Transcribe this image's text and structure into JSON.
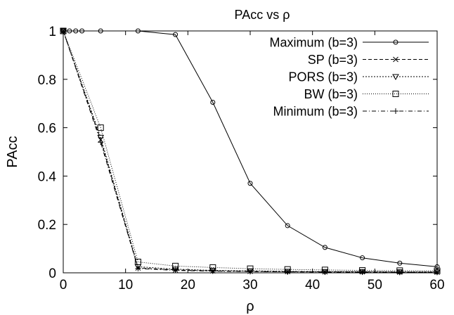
{
  "chart_data": {
    "type": "line",
    "title": "PAcc vs ρ",
    "xlabel": "ρ",
    "ylabel": "PAcc",
    "xlim": [
      0,
      60
    ],
    "ylim": [
      0,
      1
    ],
    "xticks": [
      0,
      10,
      20,
      30,
      40,
      50,
      60
    ],
    "yticks": [
      0,
      0.2,
      0.4,
      0.6,
      0.8,
      1
    ],
    "ytick_labels": [
      "0",
      "0.2",
      "0.4",
      "0.6",
      "0.8",
      "1"
    ],
    "grid": false,
    "legend_position": "top-right",
    "series": [
      {
        "name": "Maximum (b=3)",
        "line": "solid",
        "marker": "circle",
        "x": [
          0,
          1,
          2,
          3,
          6,
          12,
          18,
          24,
          30,
          36,
          42,
          48,
          54,
          60
        ],
        "y": [
          1,
          1,
          1,
          1,
          1,
          1,
          0.985,
          0.705,
          0.37,
          0.195,
          0.105,
          0.062,
          0.04,
          0.025
        ]
      },
      {
        "name": "SP (b=3)",
        "line": "dashed",
        "marker": "x",
        "x": [
          0,
          6,
          12,
          18,
          24,
          30,
          36,
          42,
          48,
          54,
          60
        ],
        "y": [
          1,
          0.55,
          0.02,
          0.012,
          0.008,
          0.006,
          0.005,
          0.004,
          0.004,
          0.003,
          0.003
        ]
      },
      {
        "name": "PORS (b=3)",
        "line": "dotted",
        "marker": "triangle-down",
        "x": [
          0,
          6,
          12,
          18,
          24,
          30,
          36,
          42,
          48,
          54,
          60
        ],
        "y": [
          1,
          0.56,
          0.025,
          0.015,
          0.01,
          0.008,
          0.006,
          0.005,
          0.005,
          0.004,
          0.004
        ]
      },
      {
        "name": "BW (b=3)",
        "line": "fine-dotted",
        "marker": "square",
        "x": [
          0,
          6,
          12,
          18,
          24,
          30,
          36,
          42,
          48,
          54,
          60
        ],
        "y": [
          1,
          0.6,
          0.045,
          0.028,
          0.022,
          0.017,
          0.014,
          0.012,
          0.01,
          0.009,
          0.008
        ]
      },
      {
        "name": "Minimum (b=3)",
        "line": "dash-dot",
        "marker": "plus",
        "x": [
          0,
          6,
          12,
          18,
          24,
          30,
          36,
          42,
          48,
          54,
          60
        ],
        "y": [
          1,
          0.54,
          0.018,
          0.01,
          0.007,
          0.005,
          0.004,
          0.003,
          0.003,
          0.002,
          0.002
        ]
      }
    ]
  }
}
